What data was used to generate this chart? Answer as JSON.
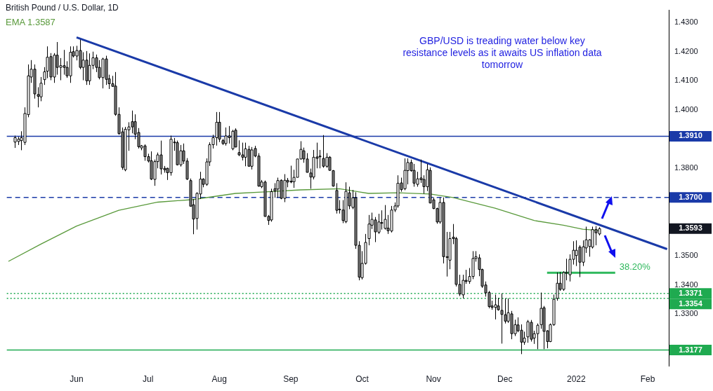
{
  "chart_data": {
    "type": "candlestick",
    "title": "British Pound / U.S. Dollar, 1D",
    "categories": [
      null,
      null,
      null,
      null,
      null,
      null,
      null,
      null,
      null,
      null,
      null,
      null,
      null,
      null,
      null,
      null,
      null,
      null,
      null,
      null,
      null,
      "Jun",
      null,
      null,
      null,
      null,
      null,
      null,
      null,
      null,
      null,
      null,
      null,
      null,
      null,
      null,
      null,
      null,
      null,
      null,
      null,
      null,
      null,
      "Jul",
      null,
      null,
      null,
      null,
      null,
      null,
      null,
      null,
      null,
      null,
      null,
      null,
      null,
      null,
      null,
      null,
      null,
      null,
      null,
      null,
      null,
      "Aug",
      null,
      null,
      null,
      null,
      null,
      null,
      null,
      null,
      null,
      null,
      null,
      null,
      null,
      null,
      null,
      null,
      null,
      null,
      null,
      null,
      null,
      "Sep",
      null,
      null,
      null,
      null,
      null,
      null,
      null,
      null,
      null,
      null,
      null,
      null,
      null,
      null,
      null,
      null,
      null,
      null,
      null,
      null,
      null,
      "Oct",
      null,
      null,
      null,
      null,
      null,
      null,
      null,
      null,
      null,
      null,
      null,
      null,
      null,
      null,
      null,
      null,
      null,
      null,
      null,
      null,
      null,
      "Nov",
      null,
      null,
      null,
      null,
      null,
      null,
      null,
      null,
      null,
      null,
      null,
      null,
      null,
      null,
      null,
      null,
      null,
      null,
      null,
      null,
      null,
      "Dec",
      null,
      null,
      null,
      null,
      null,
      null,
      null,
      null,
      null,
      null,
      null,
      null,
      null,
      null,
      null,
      null,
      null,
      null,
      null,
      null,
      null,
      "2022",
      null,
      null,
      null,
      null,
      null,
      null,
      null,
      null,
      null,
      null,
      null,
      null,
      null,
      null,
      null,
      null,
      null,
      null,
      null,
      null,
      null,
      "Feb",
      null,
      null,
      null,
      null,
      null,
      null
    ],
    "ohlc": [
      null,
      null,
      [
        1.389,
        1.3912,
        1.387,
        1.3905
      ],
      [
        1.3892,
        1.3908,
        1.388,
        1.39
      ],
      [
        1.3895,
        1.3927,
        1.3862,
        1.3905
      ],
      [
        1.3889,
        1.4009,
        1.388,
        1.3988
      ],
      [
        1.3984,
        1.4156,
        1.3975,
        1.4117
      ],
      [
        1.4113,
        1.4171,
        1.4093,
        1.414
      ],
      [
        1.414,
        1.4156,
        1.4039,
        1.4055
      ],
      [
        1.4053,
        1.4078,
        1.4009,
        1.4047
      ],
      [
        1.4045,
        1.4113,
        1.403,
        1.4092
      ],
      [
        1.4104,
        1.4147,
        1.4086,
        1.4131
      ],
      [
        1.4133,
        1.4218,
        1.4109,
        1.4181
      ],
      [
        1.4183,
        1.4195,
        1.4102,
        1.4113
      ],
      [
        1.4113,
        1.4195,
        1.4093,
        1.4188
      ],
      [
        1.4188,
        1.4233,
        1.4121,
        1.4146
      ],
      [
        1.4146,
        1.4178,
        1.4102,
        1.4152
      ],
      [
        1.4152,
        1.4206,
        1.4121,
        1.4146
      ],
      [
        1.4146,
        1.4167,
        1.411,
        1.4117
      ],
      [
        1.4117,
        1.4218,
        1.4093,
        1.4198
      ],
      [
        1.42,
        1.4218,
        1.418,
        1.4185
      ],
      [
        1.4185,
        1.422,
        1.417,
        1.4204
      ],
      [
        1.4204,
        1.4241,
        1.414,
        1.4146
      ],
      [
        1.4146,
        1.4198,
        1.4102,
        1.4171
      ],
      [
        1.4171,
        1.4202,
        1.4086,
        1.41
      ],
      [
        1.41,
        1.4194,
        1.4086,
        1.4153
      ],
      [
        1.4153,
        1.42,
        1.414,
        1.4179
      ],
      [
        1.4179,
        1.419,
        1.413,
        1.4146
      ],
      [
        1.4146,
        1.4171,
        1.4105,
        1.4111
      ],
      [
        1.4111,
        1.4179,
        1.4074,
        1.4175
      ],
      [
        1.4175,
        1.4186,
        1.4086,
        1.4105
      ],
      [
        1.4107,
        1.4121,
        1.4072,
        1.409
      ],
      [
        1.409,
        1.4117,
        1.408,
        1.4081
      ],
      [
        1.4082,
        1.413,
        1.398,
        1.3985
      ],
      [
        1.3985,
        1.4009,
        1.3915,
        1.3919
      ],
      [
        1.3925,
        1.394,
        1.3795,
        1.3803
      ],
      [
        1.3795,
        1.3942,
        1.379,
        1.3934
      ],
      [
        1.3932,
        1.3958,
        1.386,
        1.3942
      ],
      [
        1.396,
        1.3998,
        1.392,
        1.3942
      ],
      [
        1.396,
        1.3985,
        1.39,
        1.3917
      ],
      [
        1.3923,
        1.3938,
        1.3868,
        1.3874
      ],
      [
        1.387,
        1.388,
        1.3862,
        1.3877
      ],
      [
        1.3877,
        1.3882,
        1.3826,
        1.384
      ],
      [
        1.384,
        1.385,
        1.382,
        1.3825
      ],
      [
        1.3826,
        1.3858,
        1.376,
        1.3763
      ],
      [
        1.3762,
        1.383,
        1.374,
        1.3823
      ],
      [
        1.3823,
        1.3854,
        1.38,
        1.3846
      ],
      [
        1.3846,
        1.3895,
        1.3779,
        1.3798
      ],
      [
        1.38,
        1.3808,
        1.3785,
        1.3795
      ],
      [
        1.38,
        1.3802,
        1.376,
        1.3785
      ],
      [
        1.3785,
        1.3912,
        1.3775,
        1.39
      ],
      [
        1.389,
        1.3904,
        1.386,
        1.3888
      ],
      [
        1.3888,
        1.3895,
        1.381,
        1.3812
      ],
      [
        1.3812,
        1.388,
        1.3806,
        1.386
      ],
      [
        1.386,
        1.3885,
        1.3815,
        1.3825
      ],
      [
        1.3825,
        1.3835,
        1.376,
        1.3763
      ],
      [
        1.3758,
        1.3765,
        1.367,
        1.367
      ],
      [
        1.3675,
        1.3695,
        1.3574,
        1.3626
      ],
      [
        1.3628,
        1.3718,
        1.359,
        1.3714
      ],
      [
        1.3712,
        1.3788,
        1.3695,
        1.3763
      ],
      [
        1.3763,
        1.3766,
        1.3735,
        1.3745
      ],
      [
        1.3745,
        1.3834,
        1.374,
        1.3822
      ],
      [
        1.3822,
        1.3889,
        1.3808,
        1.3881
      ],
      [
        1.3881,
        1.3915,
        1.3868,
        1.3905
      ],
      [
        1.3905,
        1.3993,
        1.3878,
        1.3958
      ],
      [
        1.3958,
        1.3993,
        1.389,
        1.39
      ],
      [
        1.3895,
        1.3901,
        1.388,
        1.3885
      ],
      [
        1.3885,
        1.394,
        1.3878,
        1.3911
      ],
      [
        1.3911,
        1.3945,
        1.3885,
        1.3905
      ],
      [
        1.3867,
        1.3932,
        1.3862,
        1.3927
      ],
      [
        1.3931,
        1.3937,
        1.3872,
        1.3873
      ],
      [
        1.3854,
        1.3896,
        1.3842,
        1.3846
      ],
      [
        1.3846,
        1.3888,
        1.3827,
        1.3838
      ],
      [
        1.3838,
        1.3888,
        1.3807,
        1.3867
      ],
      [
        1.3865,
        1.3877,
        1.3807,
        1.3807
      ],
      [
        1.3807,
        1.3873,
        1.3796,
        1.3863
      ],
      [
        1.3868,
        1.3877,
        1.3838,
        1.3842
      ],
      [
        1.3842,
        1.3852,
        1.3737,
        1.3739
      ],
      [
        1.3737,
        1.376,
        1.3732,
        1.3753
      ],
      [
        1.3753,
        1.3758,
        1.3634,
        1.3635
      ],
      [
        1.3635,
        1.364,
        1.3606,
        1.3621
      ],
      [
        1.3623,
        1.373,
        1.3617,
        1.372
      ],
      [
        1.373,
        1.3749,
        1.3699,
        1.3722
      ],
      [
        1.3729,
        1.3768,
        1.3699,
        1.3758
      ],
      [
        1.3759,
        1.3762,
        1.3694,
        1.3697
      ],
      [
        1.3697,
        1.378,
        1.3684,
        1.3759
      ],
      [
        1.3759,
        1.3767,
        1.3735,
        1.3753
      ],
      [
        1.3756,
        1.3809,
        1.3749,
        1.3753
      ],
      [
        1.3754,
        1.3795,
        1.3733,
        1.3769
      ],
      [
        1.3769,
        1.3832,
        1.3769,
        1.3832
      ],
      [
        1.3832,
        1.3893,
        1.383,
        1.3865
      ],
      [
        1.386,
        1.3871,
        1.3819,
        1.3832
      ],
      [
        1.3832,
        1.3852,
        1.3786,
        1.3786
      ],
      [
        1.3784,
        1.3799,
        1.373,
        1.377
      ],
      [
        1.377,
        1.3863,
        1.3762,
        1.3838
      ],
      [
        1.3839,
        1.3888,
        1.38,
        1.3834
      ],
      [
        1.3842,
        1.3863,
        1.38,
        1.384
      ],
      [
        1.3834,
        1.3914,
        1.3802,
        1.3807
      ],
      [
        1.3807,
        1.3852,
        1.3802,
        1.3838
      ],
      [
        1.3838,
        1.3842,
        1.3792,
        1.3793
      ],
      [
        1.3792,
        1.3794,
        1.3737,
        1.3739
      ],
      [
        1.3724,
        1.3749,
        1.3645,
        1.3656
      ],
      [
        1.366,
        1.3691,
        1.3645,
        1.3658
      ],
      [
        1.3657,
        1.3691,
        1.3612,
        1.3621
      ],
      [
        1.3617,
        1.3752,
        1.3612,
        1.3721
      ],
      [
        1.3716,
        1.3737,
        1.366,
        1.3671
      ],
      [
        1.3666,
        1.3726,
        1.366,
        1.3699
      ],
      [
        1.3699,
        1.3718,
        1.3524,
        1.3536
      ],
      [
        1.3536,
        1.355,
        1.3416,
        1.3427
      ],
      [
        1.3425,
        1.3516,
        1.3419,
        1.3474
      ],
      [
        1.3474,
        1.3575,
        1.347,
        1.3546
      ],
      [
        1.3559,
        1.364,
        1.3536,
        1.3609
      ],
      [
        1.3605,
        1.3648,
        1.3592,
        1.3625
      ],
      [
        1.3623,
        1.3633,
        1.3547,
        1.3582
      ],
      [
        1.3581,
        1.3644,
        1.3575,
        1.3616
      ],
      [
        1.3614,
        1.3656,
        1.359,
        1.3612
      ],
      [
        1.3594,
        1.3674,
        1.359,
        1.3625
      ],
      [
        1.3595,
        1.364,
        1.3575,
        1.3586
      ],
      [
        1.3585,
        1.3671,
        1.358,
        1.3657
      ],
      [
        1.3657,
        1.3683,
        1.365,
        1.3671
      ],
      [
        1.3671,
        1.3776,
        1.3665,
        1.3749
      ],
      [
        1.375,
        1.3768,
        1.372,
        1.3727
      ],
      [
        1.373,
        1.3834,
        1.3725,
        1.3793
      ],
      [
        1.3792,
        1.3834,
        1.3745,
        1.382
      ],
      [
        1.382,
        1.383,
        1.3788,
        1.3792
      ],
      [
        1.3793,
        1.3815,
        1.3737,
        1.3749
      ],
      [
        1.3745,
        1.3788,
        1.3737,
        1.3764
      ],
      [
        1.3767,
        1.383,
        1.375,
        1.3761
      ],
      [
        1.3762,
        1.3776,
        1.3713,
        1.3737
      ],
      [
        1.3737,
        1.3815,
        1.3722,
        1.3795
      ],
      [
        1.3793,
        1.3803,
        1.368,
        1.3681
      ],
      [
        1.3692,
        1.37,
        1.366,
        1.3662
      ],
      [
        1.3662,
        1.3665,
        1.361,
        1.3616
      ],
      [
        1.3616,
        1.37,
        1.361,
        1.3683
      ],
      [
        1.3683,
        1.37,
        1.3474,
        1.3497
      ],
      [
        1.3497,
        1.3582,
        1.3429,
        1.3495
      ],
      [
        1.3485,
        1.3582,
        1.3454,
        1.3559
      ],
      [
        1.3564,
        1.3609,
        1.354,
        1.3559
      ],
      [
        1.3559,
        1.3565,
        1.3395,
        1.3402
      ],
      [
        1.3402,
        1.3435,
        1.3362,
        1.3369
      ],
      [
        1.3366,
        1.3435,
        1.3354,
        1.3416
      ],
      [
        1.3416,
        1.3452,
        1.3404,
        1.3412
      ],
      [
        1.3412,
        1.3458,
        1.3404,
        1.3429
      ],
      [
        1.3429,
        1.3516,
        1.342,
        1.3491
      ],
      [
        1.3491,
        1.3516,
        1.348,
        1.3497
      ],
      [
        1.3493,
        1.3505,
        1.343,
        1.3453
      ],
      [
        1.3453,
        1.3456,
        1.339,
        1.3396
      ],
      [
        1.34,
        1.3412,
        1.336,
        1.3373
      ],
      [
        1.3374,
        1.338,
        1.332,
        1.3326
      ],
      [
        1.3328,
        1.3346,
        1.3315,
        1.3323
      ],
      [
        1.3323,
        1.3367,
        1.3282,
        1.3332
      ],
      [
        1.3328,
        1.3356,
        1.3312,
        1.3315
      ],
      [
        1.3313,
        1.3371,
        1.3199,
        1.3299
      ],
      [
        1.3298,
        1.3354,
        1.3268,
        1.3276
      ],
      [
        1.3276,
        1.3354,
        1.327,
        1.3305
      ],
      [
        1.3301,
        1.3311,
        1.3214,
        1.3233
      ],
      [
        1.3233,
        1.3281,
        1.3225,
        1.3264
      ],
      [
        1.3263,
        1.3289,
        1.3238,
        1.3243
      ],
      [
        1.3245,
        1.3265,
        1.3163,
        1.3204
      ],
      [
        1.3204,
        1.324,
        1.3195,
        1.3218
      ],
      [
        1.3222,
        1.328,
        1.3202,
        1.3274
      ],
      [
        1.3272,
        1.328,
        1.3206,
        1.3214
      ],
      [
        1.3218,
        1.3243,
        1.3198,
        1.3233
      ],
      [
        1.3233,
        1.3268,
        1.318,
        1.3262
      ],
      [
        1.3264,
        1.3374,
        1.325,
        1.332
      ],
      [
        1.3322,
        1.3328,
        1.318,
        1.3241
      ],
      [
        1.3243,
        1.3245,
        1.3183,
        1.3206
      ],
      [
        1.3206,
        1.3268,
        1.3204,
        1.3264
      ],
      [
        1.3264,
        1.3367,
        1.326,
        1.3351
      ],
      [
        1.3354,
        1.3443,
        1.3346,
        1.3406
      ],
      [
        1.3406,
        1.3445,
        1.338,
        1.3385
      ],
      [
        1.3385,
        1.3447,
        1.338,
        1.3443
      ],
      [
        1.3443,
        1.349,
        1.3416,
        1.3443
      ],
      [
        1.3435,
        1.3505,
        1.3412,
        1.3488
      ],
      [
        1.3488,
        1.355,
        1.347,
        1.3519
      ],
      [
        1.3501,
        1.3553,
        1.3465,
        1.3519
      ],
      [
        1.353,
        1.3536,
        1.3427,
        1.3478
      ],
      [
        1.3478,
        1.3553,
        1.3465,
        1.3531
      ],
      [
        1.3527,
        1.36,
        1.351,
        1.3555
      ],
      [
        1.3532,
        1.3557,
        1.3497,
        1.3555
      ],
      [
        1.353,
        1.36,
        1.3525,
        1.359
      ],
      [
        1.359,
        1.3602,
        1.3536,
        1.3579
      ],
      [
        1.3575,
        1.3598,
        1.357,
        1.3593
      ],
      null,
      null,
      null,
      null,
      null,
      null,
      null,
      null,
      null,
      null,
      null,
      null,
      null,
      null,
      null,
      null,
      null,
      null,
      null,
      null,
      null
    ],
    "series": [
      {
        "name": "EMA 1.3587",
        "type": "line",
        "color": "#5a9a3c",
        "values": [
          1.3481,
          null,
          null,
          null,
          null,
          null,
          null,
          null,
          null,
          null,
          1.354,
          null,
          null,
          null,
          null,
          null,
          null,
          null,
          null,
          null,
          null,
          1.3602,
          null,
          null,
          null,
          null,
          null,
          null,
          null,
          null,
          null,
          null,
          null,
          null,
          1.3656,
          null,
          null,
          null,
          null,
          null,
          null,
          null,
          null,
          null,
          null,
          null,
          1.3684,
          null,
          null,
          null,
          null,
          null,
          null,
          null,
          null,
          null,
          null,
          1.3693,
          null,
          null,
          null,
          null,
          null,
          null,
          null,
          null,
          null,
          null,
          null,
          null,
          1.3714,
          null,
          null,
          null,
          null,
          null,
          null,
          null,
          null,
          1.3719,
          null,
          null,
          null,
          null,
          null,
          null,
          null,
          null,
          null,
          null,
          1.3726,
          null,
          null,
          null,
          null,
          null,
          null,
          null,
          null,
          null,
          null,
          null,
          1.373,
          null,
          null,
          null,
          null,
          null,
          null,
          null,
          null,
          1.3714,
          null,
          null,
          null,
          null,
          null,
          null,
          null,
          null,
          1.3716,
          null,
          null,
          null,
          null,
          null,
          null,
          null,
          null,
          null,
          1.3712,
          null,
          null,
          null,
          null,
          null,
          null,
          1.37,
          null,
          null,
          null,
          null,
          null,
          null,
          null,
          null,
          null,
          null,
          null,
          null,
          1.3663,
          null,
          null,
          null,
          null,
          null,
          null,
          null,
          null,
          null,
          null,
          null,
          1.3621,
          null,
          null,
          null,
          null,
          null,
          null,
          null,
          null,
          1.3605,
          null,
          null,
          null,
          null,
          null,
          1.3591,
          null,
          null,
          null,
          null,
          1.3587,
          null,
          null,
          null,
          null,
          null,
          null,
          null,
          null,
          null,
          null,
          null,
          null,
          null,
          null,
          null,
          null,
          null,
          null,
          null,
          null,
          null
        ]
      },
      {
        "type": "line",
        "color": "#1a3aa8",
        "values": [
          null,
          null,
          null,
          null,
          null,
          null,
          null,
          null,
          null,
          null,
          null,
          null,
          null,
          null,
          null,
          null,
          null,
          null,
          null,
          null,
          null,
          1.4249,
          null,
          null,
          null,
          null,
          null,
          null,
          null,
          null,
          null,
          null,
          null,
          null,
          null,
          null,
          null,
          null,
          null,
          null,
          null,
          null,
          null,
          null,
          null,
          null,
          null,
          null,
          null,
          null,
          null,
          null,
          null,
          null,
          null,
          null,
          null,
          null,
          null,
          null,
          null,
          null,
          null,
          null,
          null,
          null,
          null,
          null,
          null,
          null,
          null,
          null,
          null,
          null,
          null,
          null,
          null,
          null,
          null,
          null,
          null,
          null,
          null,
          null,
          null,
          null,
          null,
          null,
          null,
          null,
          null,
          null,
          null,
          null,
          null,
          null,
          null,
          null,
          null,
          null,
          null,
          null,
          null,
          null,
          null,
          null,
          null,
          null,
          null,
          null,
          null,
          null,
          null,
          null,
          null,
          null,
          null,
          null,
          null,
          null,
          null,
          null,
          null,
          null,
          null,
          null,
          null,
          null,
          null,
          null,
          null,
          null,
          null,
          null,
          null,
          null,
          null,
          null,
          null,
          null,
          null,
          null,
          null,
          null,
          null,
          null,
          null,
          null,
          null,
          null,
          null,
          null,
          null,
          null,
          null,
          null,
          null,
          null,
          null,
          null,
          null,
          null,
          null,
          null,
          null,
          null,
          null,
          null,
          null,
          null,
          null,
          null,
          null,
          null,
          null,
          null,
          null,
          null,
          null,
          null,
          null,
          null,
          null,
          null,
          null,
          null,
          null,
          null,
          null,
          null,
          null,
          null,
          null,
          null,
          null,
          null,
          null,
          null,
          null,
          null,
          null,
          null,
          null,
          1.3523
        ]
      },
      {
        "type": "line",
        "color": "#2eb85c",
        "values": [
          null,
          null,
          null,
          null,
          null,
          null,
          null,
          null,
          null,
          null,
          null,
          null,
          null,
          null,
          null,
          null,
          null,
          null,
          null,
          null,
          null,
          null,
          null,
          null,
          null,
          null,
          null,
          null,
          null,
          null,
          null,
          null,
          null,
          null,
          null,
          null,
          null,
          null,
          null,
          null,
          null,
          null,
          null,
          null,
          null,
          null,
          null,
          null,
          null,
          null,
          null,
          null,
          null,
          null,
          null,
          null,
          null,
          null,
          null,
          null,
          null,
          null,
          null,
          null,
          null,
          null,
          null,
          null,
          null,
          null,
          null,
          null,
          null,
          null,
          null,
          null,
          null,
          null,
          null,
          null,
          null,
          null,
          null,
          null,
          null,
          null,
          null,
          null,
          null,
          null,
          null,
          null,
          null,
          null,
          null,
          null,
          null,
          null,
          null,
          null,
          null,
          null,
          null,
          null,
          null,
          null,
          null,
          null,
          null,
          null,
          null,
          null,
          null,
          null,
          null,
          null,
          null,
          null,
          null,
          null,
          null,
          null,
          null,
          null,
          null,
          null,
          null,
          null,
          null,
          null,
          null,
          null,
          null,
          null,
          null,
          null,
          null,
          null,
          null,
          null,
          null,
          null,
          null,
          null,
          null,
          null,
          null,
          null,
          null,
          null,
          null,
          null,
          null,
          null,
          null,
          null,
          null,
          null,
          null,
          null,
          null,
          null,
          null,
          null,
          null,
          null,
          1.3442,
          null,
          null,
          null,
          null,
          null,
          null,
          null,
          null,
          null,
          null,
          null,
          null,
          null,
          null,
          null,
          null,
          null,
          null,
          null,
          null,
          1.3442,
          null,
          null,
          null,
          null,
          null,
          null,
          null,
          null,
          null,
          null,
          null,
          null,
          null,
          null,
          null,
          null
        ]
      }
    ],
    "ylim": [
      1.3123,
      1.4342
    ],
    "yticks": [
      {
        "value": 1.33,
        "label": "1.3300"
      },
      {
        "value": 1.34,
        "label": "1.3400"
      },
      {
        "value": 1.35,
        "label": "1.3500"
      },
      {
        "value": 1.38,
        "label": "1.3800"
      },
      {
        "value": 1.4,
        "label": "1.4000"
      },
      {
        "value": 1.41,
        "label": "1.4100"
      },
      {
        "value": 1.42,
        "label": "1.4200"
      },
      {
        "value": 1.43,
        "label": "1.4300"
      }
    ],
    "ref_lines": [
      {
        "axis": "y",
        "value": 1.391,
        "label": "1.3910",
        "color": "#1a3aa8",
        "line_style": "solid"
      },
      {
        "axis": "y",
        "value": 1.37,
        "label": "1.3700",
        "color": "#1a3aa8",
        "line_style": "dashed"
      },
      {
        "axis": "y",
        "value": 1.3371,
        "label": "1.3371",
        "color": "#1faa50",
        "line_style": "dotted"
      },
      {
        "axis": "y",
        "value": 1.3354,
        "label": "1.3354",
        "color": "#1faa50",
        "line_style": "dotted"
      },
      {
        "axis": "y",
        "value": 1.3177,
        "label": "1.3177",
        "color": "#1faa50",
        "line_style": "solid"
      }
    ],
    "annotations": [
      "GBP/USD is treading water below key resistance levels as it awaits US inflation data tomorrow",
      "1.3593",
      "38.20%"
    ],
    "grid": false,
    "legend": "top left",
    "marker": "none"
  }
}
